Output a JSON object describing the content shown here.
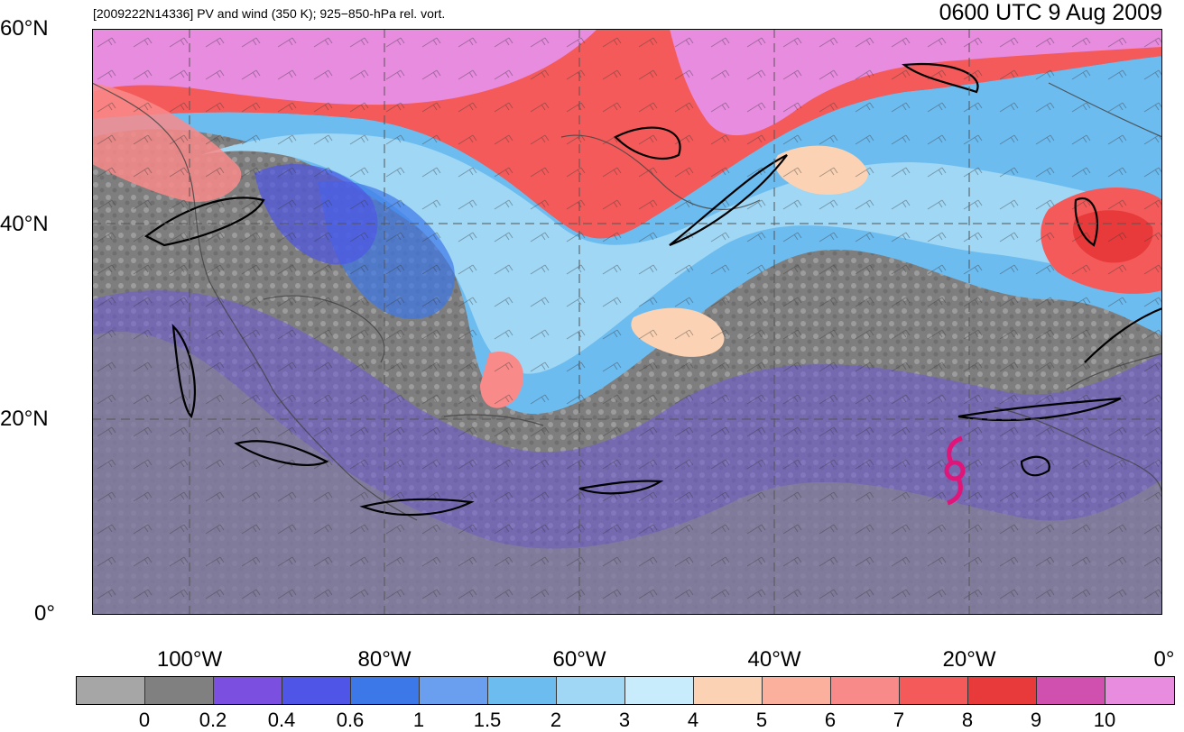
{
  "title_left": "[2009222N14336] PV and wind (350 K); 925−850-hPa rel. vort.",
  "title_right": "0600 UTC 9 Aug 2009",
  "lat_labels": [
    "60°N",
    "40°N",
    "20°N",
    "0°"
  ],
  "lon_labels": [
    "100°W",
    "80°W",
    "60°W",
    "40°W",
    "20°W",
    "0°"
  ],
  "colorbar": {
    "labels": [
      "0",
      "0.2",
      "0.4",
      "0.6",
      "1",
      "1.5",
      "2",
      "3",
      "4",
      "5",
      "6",
      "7",
      "8",
      "9",
      "10"
    ],
    "colors": [
      "#a6a6a6",
      "#808080",
      "#7b4fe0",
      "#4f55e6",
      "#3d78e8",
      "#6a9ff0",
      "#6dbcf0",
      "#9fd7f5",
      "#c8ecfb",
      "#fbd3b4",
      "#fbb09d",
      "#f98a8a",
      "#f45a5a",
      "#e83a3a",
      "#d050b0",
      "#e88ce0"
    ]
  },
  "map": {
    "lat_range": [
      0,
      60
    ],
    "lon_range": [
      -110,
      0
    ],
    "storm_symbol": "tropical-cyclone-icon",
    "storm_position": {
      "lat": 14.5,
      "lon": -22
    },
    "storm_color": "#e0157a"
  }
}
